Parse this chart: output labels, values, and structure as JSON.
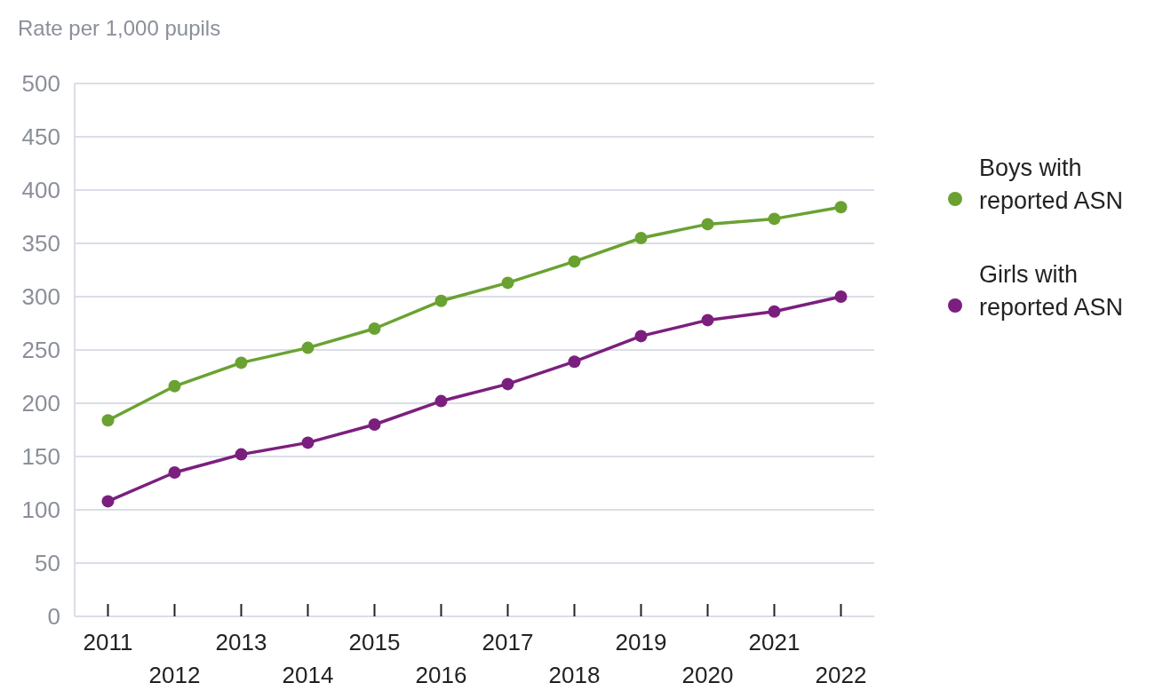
{
  "chart_data": {
    "type": "line",
    "ylabel": "Rate per 1,000 pupils",
    "categories": [
      "2011",
      "2012",
      "2013",
      "2014",
      "2015",
      "2016",
      "2017",
      "2018",
      "2019",
      "2020",
      "2021",
      "2022"
    ],
    "series": [
      {
        "name": "Boys with reported ASN",
        "color": "#6aa232",
        "values": [
          184,
          216,
          238,
          252,
          270,
          296,
          313,
          333,
          355,
          368,
          373,
          384
        ]
      },
      {
        "name": "Girls with reported ASN",
        "color": "#7b1f7e",
        "values": [
          108,
          135,
          152,
          163,
          180,
          202,
          218,
          239,
          263,
          278,
          286,
          300
        ]
      }
    ],
    "ylim": [
      0,
      500
    ],
    "yticks": [
      0,
      50,
      100,
      150,
      200,
      250,
      300,
      350,
      400,
      450,
      500
    ],
    "grid": "y",
    "legend": "right",
    "marker": "circle",
    "line_style": "solid"
  }
}
